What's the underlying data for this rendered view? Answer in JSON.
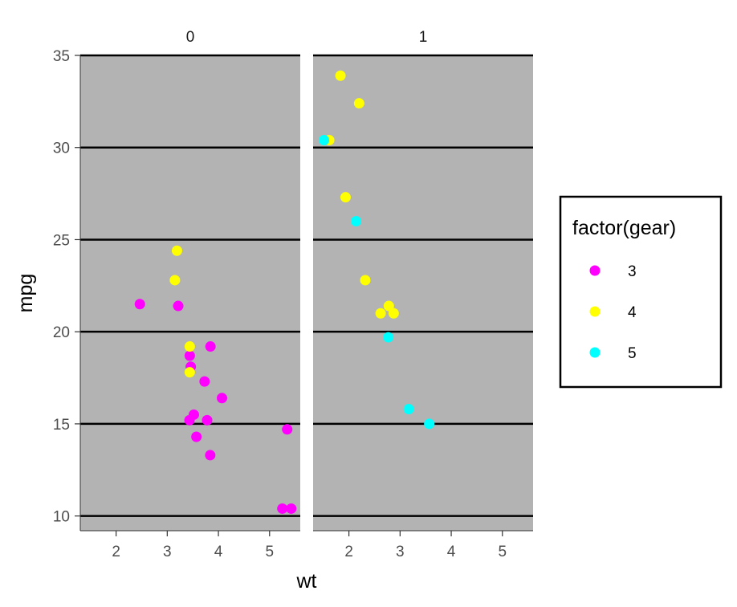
{
  "chart_data": {
    "type": "scatter",
    "facet_variable": "am",
    "panels": [
      {
        "label": "0"
      },
      {
        "label": "1"
      }
    ],
    "xlabel": "wt",
    "ylabel": "mpg",
    "xlim": [
      1.3,
      5.6
    ],
    "ylim": [
      9.2,
      35.0
    ],
    "xticks": [
      2,
      3,
      4,
      5
    ],
    "yticks": [
      10,
      15,
      20,
      25,
      30,
      35
    ],
    "grid": "horizontal major lines",
    "panel_background": "#b3b3b3",
    "legend": {
      "title": "factor(gear)",
      "placement": "right",
      "items": [
        {
          "label": "3",
          "color": "#ff00ff"
        },
        {
          "label": "4",
          "color": "#ffff00"
        },
        {
          "label": "5",
          "color": "#00ffff"
        }
      ]
    },
    "series": [
      {
        "gear": "3",
        "color": "#ff00ff",
        "panel": 0,
        "points": [
          [
            2.465,
            21.5
          ],
          [
            3.215,
            21.4
          ],
          [
            3.44,
            18.7
          ],
          [
            3.46,
            18.1
          ],
          [
            3.57,
            14.3
          ],
          [
            3.73,
            17.3
          ],
          [
            3.78,
            15.2
          ],
          [
            3.84,
            13.3
          ],
          [
            3.845,
            19.2
          ],
          [
            4.07,
            16.4
          ],
          [
            5.25,
            10.4
          ],
          [
            5.345,
            14.7
          ],
          [
            5.424,
            10.4
          ],
          [
            3.435,
            15.2
          ],
          [
            3.52,
            15.5
          ]
        ]
      },
      {
        "gear": "4",
        "color": "#ffff00",
        "panel": 0,
        "points": [
          [
            3.19,
            24.4
          ],
          [
            3.15,
            22.8
          ],
          [
            3.44,
            19.2
          ],
          [
            3.44,
            17.8
          ]
        ]
      },
      {
        "gear": "4",
        "color": "#ffff00",
        "panel": 1,
        "points": [
          [
            2.62,
            21.0
          ],
          [
            2.875,
            21.0
          ],
          [
            2.32,
            22.8
          ],
          [
            2.2,
            32.4
          ],
          [
            1.615,
            30.4
          ],
          [
            1.835,
            33.9
          ],
          [
            1.935,
            27.3
          ],
          [
            2.78,
            21.4
          ]
        ]
      },
      {
        "gear": "5",
        "color": "#00ffff",
        "panel": 1,
        "points": [
          [
            2.14,
            26.0
          ],
          [
            1.513,
            30.4
          ],
          [
            3.17,
            15.8
          ],
          [
            2.77,
            19.7
          ],
          [
            3.57,
            15.0
          ]
        ]
      }
    ]
  }
}
